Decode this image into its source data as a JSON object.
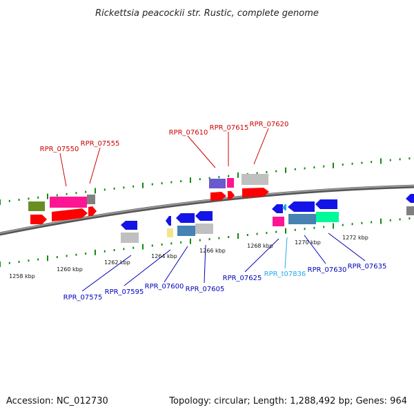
{
  "title": "Rickettsia peacockii str. Rustic, complete genome",
  "footer": {
    "accession": "Accession: NC_012730",
    "summary": "Topology: circular; Length: 1,288,492 bp; Genes: 964"
  },
  "ticks": {
    "kbp_1258": "1258 kbp",
    "kbp_1260": "1260 kbp",
    "kbp_1262": "1262 kbp",
    "kbp_1264": "1264 kbp",
    "kbp_1266": "1266 kbp",
    "kbp_1268": "1268 kbp",
    "kbp_1270": "1270 kbp",
    "kbp_1272": "1272 kbp"
  },
  "genes": {
    "rpr_07550": "RPR_07550",
    "rpr_07555": "RPR_07555",
    "rpr_07610": "RPR_07610",
    "rpr_07615": "RPR_07615",
    "rpr_07620": "RPR_07620",
    "rpr_07575": "RPR_07575",
    "rpr_07595": "RPR_07595",
    "rpr_07600": "RPR_07600",
    "rpr_07605": "RPR_07605",
    "rpr_07625": "RPR_07625",
    "rpr_t07836": "RPR_t07836",
    "rpr_07630": "RPR_07630",
    "rpr_07635": "RPR_07635"
  },
  "colors": {
    "forward_label": "#cc0000",
    "reverse_label": "#0000bb",
    "trna_label": "#22aaee",
    "backbone": "#777777",
    "tick_green": "#118811"
  }
}
